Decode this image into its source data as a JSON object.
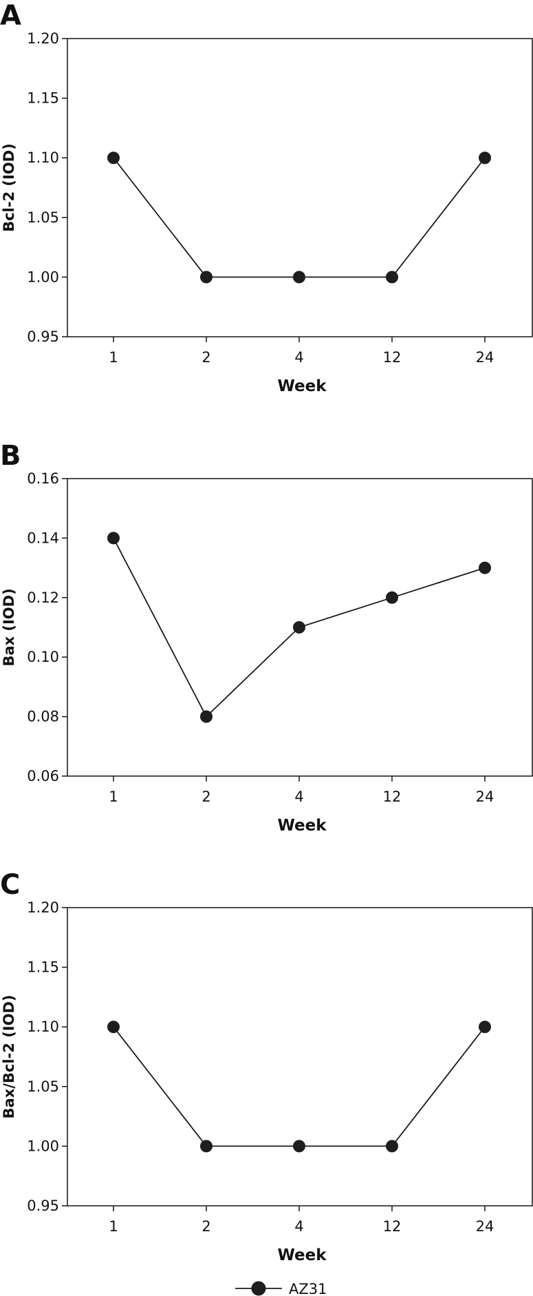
{
  "chart_data": [
    {
      "type": "line",
      "panel_label": "A",
      "categories": [
        "1",
        "2",
        "4",
        "12",
        "24"
      ],
      "series": [
        {
          "name": "AZ31",
          "values": [
            1.1,
            1.0,
            1.0,
            1.0,
            1.1
          ]
        }
      ],
      "xlabel": "Week",
      "ylabel": "Bcl-2 (IOD)",
      "ylim": [
        0.95,
        1.2
      ],
      "yticks": [
        "0.95",
        "1.00",
        "1.05",
        "1.10",
        "1.15",
        "1.20"
      ],
      "grid": false
    },
    {
      "type": "line",
      "panel_label": "B",
      "categories": [
        "1",
        "2",
        "4",
        "12",
        "24"
      ],
      "series": [
        {
          "name": "AZ31",
          "values": [
            0.14,
            0.08,
            0.11,
            0.12,
            0.13
          ]
        }
      ],
      "xlabel": "Week",
      "ylabel": "Bax (IOD)",
      "ylim": [
        0.06,
        0.16
      ],
      "yticks": [
        "0.06",
        "0.08",
        "0.10",
        "0.12",
        "0.14",
        "0.16"
      ],
      "grid": false
    },
    {
      "type": "line",
      "panel_label": "C",
      "categories": [
        "1",
        "2",
        "4",
        "12",
        "24"
      ],
      "series": [
        {
          "name": "AZ31",
          "values": [
            1.1,
            1.0,
            1.0,
            1.0,
            1.1
          ]
        }
      ],
      "xlabel": "Week",
      "ylabel": "Bax/Bcl-2 (IOD)",
      "ylim": [
        0.95,
        1.2
      ],
      "yticks": [
        "0.95",
        "1.00",
        "1.05",
        "1.10",
        "1.15",
        "1.20"
      ],
      "grid": false
    }
  ],
  "legend": {
    "label": "AZ31",
    "placement": "bottom-center"
  }
}
